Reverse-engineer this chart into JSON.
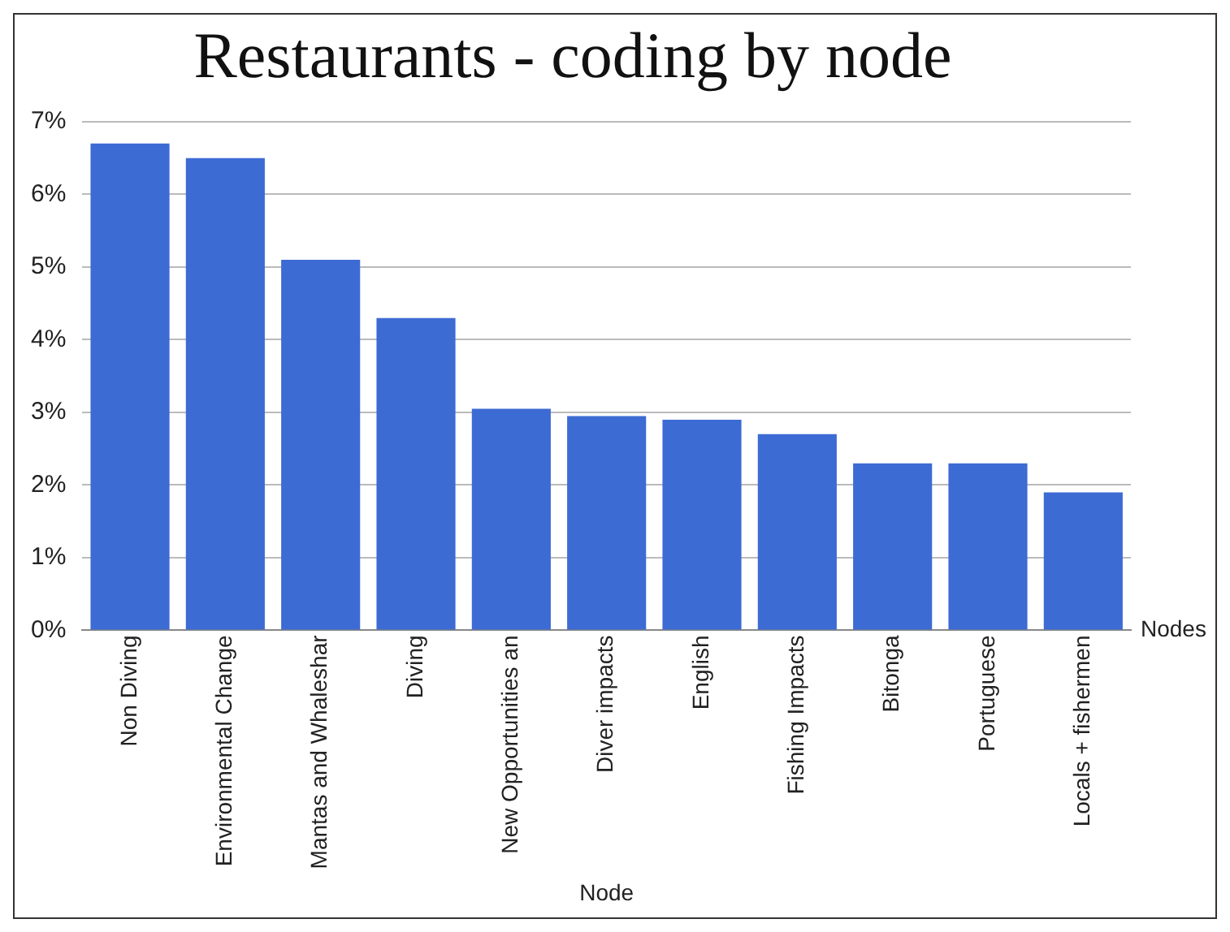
{
  "chart_data": {
    "type": "bar",
    "title": "Restaurants - coding by node",
    "xlabel": "Node",
    "annotations": [
      "Nodes"
    ],
    "categories": [
      "Non Diving",
      "Environmental Change",
      "Mantas and Whaleshar",
      "Diving",
      "New Opportunities an",
      "Diver impacts",
      "English",
      "Fishing Impacts",
      "Bitonga",
      "Portuguese",
      "Locals + fishermen"
    ],
    "values": [
      6.7,
      6.5,
      5.1,
      4.3,
      3.05,
      2.95,
      2.9,
      2.7,
      2.3,
      2.3,
      1.9
    ],
    "color": "#3d6bd4",
    "ylim": [
      0,
      7
    ],
    "yticks": [
      {
        "value": 0,
        "label": "0%"
      },
      {
        "value": 1,
        "label": "1%"
      },
      {
        "value": 2,
        "label": "2%"
      },
      {
        "value": 3,
        "label": "3%"
      },
      {
        "value": 4,
        "label": "4%"
      },
      {
        "value": 5,
        "label": "5%"
      },
      {
        "value": 6,
        "label": "6%"
      },
      {
        "value": 7,
        "label": "7%"
      }
    ],
    "grid": "y",
    "legend": false
  }
}
